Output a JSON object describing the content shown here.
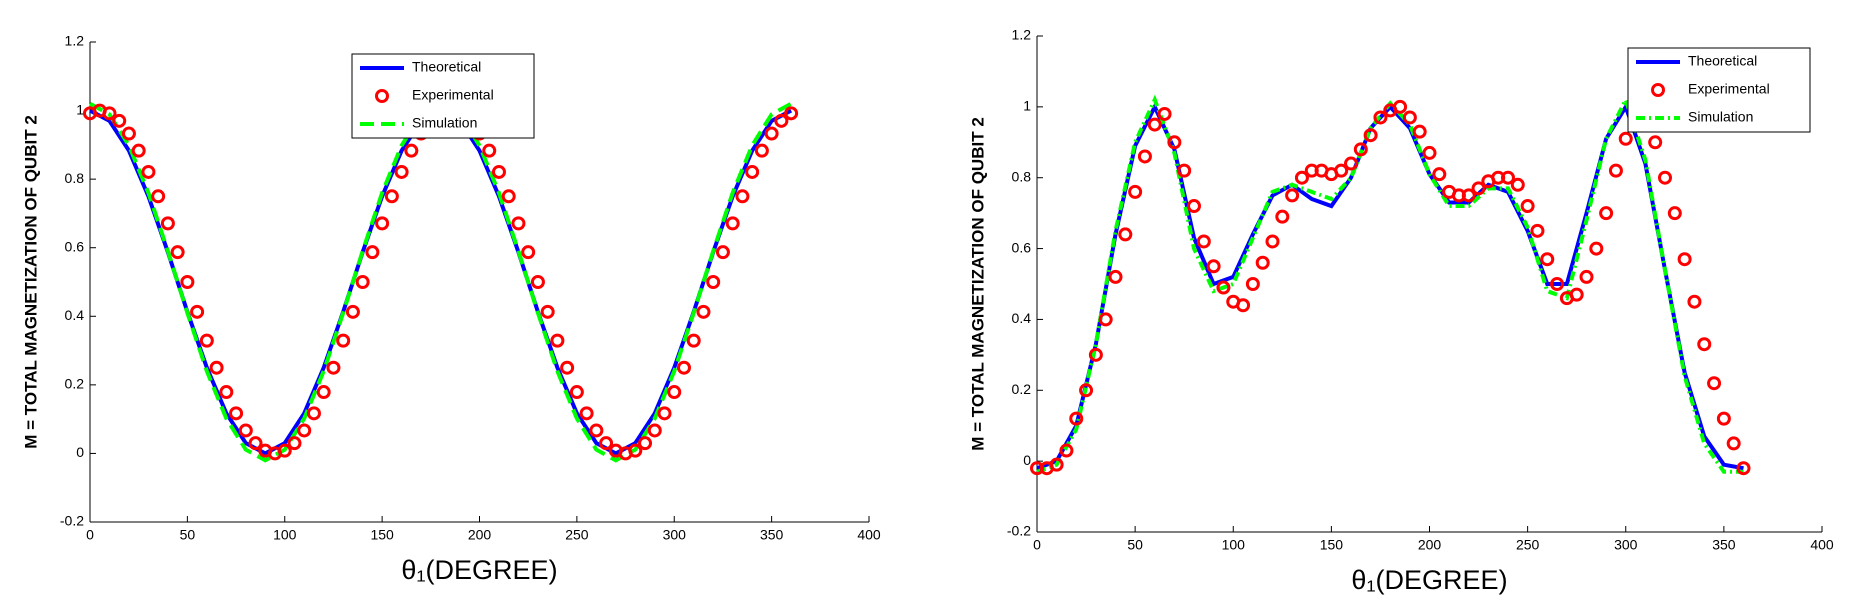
{
  "chart_data": [
    {
      "type": "line",
      "xlabel": "θ₁(DEGREE)",
      "ylabel": "M = TOTAL MAGNETIZATION OF QUBIT 2",
      "xlim": [
        0,
        400
      ],
      "xticks": [
        0,
        50,
        100,
        150,
        200,
        250,
        300,
        350,
        400
      ],
      "ylim": [
        -0.2,
        1.2
      ],
      "yticks": [
        -0.2,
        0,
        0.2,
        0.4,
        0.6,
        0.8,
        1,
        1.2
      ],
      "legend": "upper right",
      "series": [
        {
          "name": "Theoretical",
          "color": "#0000ff",
          "linestyle": "solid",
          "marker": "none",
          "x": [
            0,
            10,
            20,
            30,
            40,
            50,
            60,
            70,
            80,
            90,
            100,
            110,
            120,
            130,
            140,
            150,
            160,
            170,
            180,
            190,
            200,
            210,
            220,
            230,
            240,
            250,
            260,
            270,
            280,
            290,
            300,
            310,
            320,
            330,
            340,
            350,
            360
          ],
          "values": [
            1,
            0.97,
            0.883,
            0.75,
            0.587,
            0.413,
            0.25,
            0.117,
            0.03,
            0,
            0.03,
            0.117,
            0.25,
            0.413,
            0.587,
            0.75,
            0.883,
            0.97,
            1,
            0.97,
            0.883,
            0.75,
            0.587,
            0.413,
            0.25,
            0.117,
            0.03,
            0,
            0.03,
            0.117,
            0.25,
            0.413,
            0.587,
            0.75,
            0.883,
            0.97,
            1
          ]
        },
        {
          "name": "Experimental",
          "color": "#ff0000",
          "linestyle": "none",
          "marker": "circle",
          "x": [
            0,
            5,
            10,
            15,
            20,
            25,
            30,
            35,
            40,
            45,
            50,
            55,
            60,
            65,
            70,
            75,
            80,
            85,
            90,
            95,
            100,
            105,
            110,
            115,
            120,
            125,
            130,
            135,
            140,
            145,
            150,
            155,
            160,
            165,
            170,
            175,
            180,
            185,
            190,
            195,
            200,
            205,
            210,
            215,
            220,
            225,
            230,
            235,
            240,
            245,
            250,
            255,
            260,
            265,
            270,
            275,
            280,
            285,
            290,
            295,
            300,
            305,
            310,
            315,
            320,
            325,
            330,
            335,
            340,
            345,
            350,
            355,
            360
          ],
          "values": [
            0.992,
            1,
            0.992,
            0.97,
            0.933,
            0.883,
            0.821,
            0.75,
            0.671,
            0.587,
            0.5,
            0.413,
            0.329,
            0.25,
            0.179,
            0.117,
            0.067,
            0.03,
            0.008,
            0,
            0.008,
            0.03,
            0.067,
            0.117,
            0.179,
            0.25,
            0.329,
            0.413,
            0.5,
            0.587,
            0.671,
            0.75,
            0.821,
            0.883,
            0.933,
            0.97,
            0.992,
            1,
            0.992,
            0.97,
            0.933,
            0.883,
            0.821,
            0.75,
            0.671,
            0.587,
            0.5,
            0.413,
            0.329,
            0.25,
            0.179,
            0.117,
            0.067,
            0.03,
            0.008,
            0,
            0.008,
            0.03,
            0.067,
            0.117,
            0.179,
            0.25,
            0.329,
            0.413,
            0.5,
            0.587,
            0.671,
            0.75,
            0.821,
            0.883,
            0.933,
            0.97,
            0.992
          ]
        },
        {
          "name": "Simulation",
          "color": "#00ff00",
          "linestyle": "dashed",
          "marker": "none",
          "x": [
            0,
            10,
            20,
            30,
            40,
            50,
            60,
            70,
            80,
            90,
            100,
            110,
            120,
            130,
            140,
            150,
            160,
            170,
            180,
            190,
            200,
            210,
            220,
            230,
            240,
            250,
            260,
            270,
            280,
            290,
            300,
            310,
            320,
            330,
            340,
            350,
            360
          ],
          "values": [
            1.02,
            0.989,
            0.898,
            0.76,
            0.59,
            0.41,
            0.24,
            0.102,
            0.011,
            -0.02,
            0.011,
            0.102,
            0.24,
            0.41,
            0.59,
            0.76,
            0.898,
            0.989,
            1.02,
            0.989,
            0.898,
            0.76,
            0.59,
            0.41,
            0.24,
            0.102,
            0.011,
            -0.02,
            0.011,
            0.102,
            0.24,
            0.41,
            0.59,
            0.76,
            0.898,
            0.989,
            1.02
          ]
        }
      ]
    },
    {
      "type": "line",
      "xlabel": "θ₁(DEGREE)",
      "ylabel": "M = TOTAL MAGNETIZATION OF QUBIT 2",
      "xlim": [
        0,
        400
      ],
      "xticks": [
        0,
        50,
        100,
        150,
        200,
        250,
        300,
        350,
        400
      ],
      "ylim": [
        -0.2,
        1.2
      ],
      "yticks": [
        -0.2,
        0,
        0.2,
        0.4,
        0.6,
        0.8,
        1,
        1.2
      ],
      "legend": "upper right",
      "series": [
        {
          "name": "Theoretical",
          "color": "#0000ff",
          "linestyle": "solid",
          "marker": "none",
          "x": [
            0,
            10,
            20,
            30,
            40,
            50,
            60,
            70,
            80,
            90,
            100,
            110,
            120,
            130,
            140,
            150,
            160,
            170,
            180,
            190,
            200,
            210,
            220,
            230,
            240,
            250,
            260,
            270,
            280,
            290,
            300,
            310,
            320,
            330,
            340,
            350,
            360
          ],
          "values": [
            -0.02,
            0,
            0.1,
            0.33,
            0.64,
            0.89,
            1,
            0.88,
            0.63,
            0.5,
            0.52,
            0.64,
            0.75,
            0.78,
            0.74,
            0.72,
            0.8,
            0.94,
            1,
            0.94,
            0.81,
            0.73,
            0.73,
            0.78,
            0.76,
            0.65,
            0.5,
            0.5,
            0.7,
            0.91,
            1,
            0.84,
            0.54,
            0.25,
            0.07,
            -0.01,
            -0.02
          ]
        },
        {
          "name": "Experimental",
          "color": "#ff0000",
          "linestyle": "none",
          "marker": "circle",
          "x": [
            0,
            5,
            10,
            15,
            20,
            25,
            30,
            35,
            40,
            45,
            50,
            55,
            60,
            65,
            70,
            75,
            80,
            85,
            90,
            95,
            100,
            105,
            110,
            115,
            120,
            125,
            130,
            135,
            140,
            145,
            150,
            155,
            160,
            165,
            170,
            175,
            180,
            185,
            190,
            195,
            200,
            205,
            210,
            215,
            220,
            225,
            230,
            235,
            240,
            245,
            250,
            255,
            260,
            265,
            270,
            275,
            280,
            285,
            290,
            295,
            300,
            305,
            310,
            315,
            320,
            325,
            330,
            335,
            340,
            345,
            350,
            355,
            360
          ],
          "values": [
            -0.02,
            -0.02,
            -0.01,
            0.03,
            0.12,
            0.2,
            0.3,
            0.4,
            0.52,
            0.64,
            0.76,
            0.86,
            0.95,
            0.98,
            0.9,
            0.82,
            0.72,
            0.62,
            0.55,
            0.49,
            0.45,
            0.44,
            0.5,
            0.56,
            0.62,
            0.69,
            0.75,
            0.8,
            0.82,
            0.82,
            0.81,
            0.82,
            0.84,
            0.88,
            0.92,
            0.97,
            0.99,
            1,
            0.97,
            0.93,
            0.87,
            0.81,
            0.76,
            0.75,
            0.75,
            0.77,
            0.79,
            0.8,
            0.8,
            0.78,
            0.72,
            0.65,
            0.57,
            0.5,
            0.46,
            0.47,
            0.52,
            0.6,
            0.7,
            0.82,
            0.91,
            0.96,
            0.97,
            0.9,
            0.8,
            0.7,
            0.57,
            0.45,
            0.33,
            0.22,
            0.12,
            0.05,
            -0.02
          ]
        },
        {
          "name": "Simulation",
          "color": "#00ff00",
          "linestyle": "dashdot",
          "marker": "none",
          "x": [
            0,
            10,
            20,
            30,
            40,
            50,
            60,
            70,
            80,
            90,
            100,
            110,
            120,
            130,
            140,
            150,
            160,
            170,
            180,
            190,
            200,
            210,
            220,
            230,
            240,
            250,
            260,
            270,
            280,
            290,
            300,
            310,
            320,
            330,
            340,
            350,
            360
          ],
          "values": [
            -0.03,
            -0.01,
            0.09,
            0.33,
            0.65,
            0.9,
            1.02,
            0.87,
            0.6,
            0.48,
            0.5,
            0.63,
            0.76,
            0.78,
            0.76,
            0.74,
            0.8,
            0.94,
            1.01,
            0.95,
            0.81,
            0.72,
            0.72,
            0.77,
            0.77,
            0.66,
            0.48,
            0.46,
            0.68,
            0.91,
            1.02,
            0.85,
            0.54,
            0.24,
            0.05,
            -0.03,
            -0.03
          ]
        }
      ]
    }
  ]
}
